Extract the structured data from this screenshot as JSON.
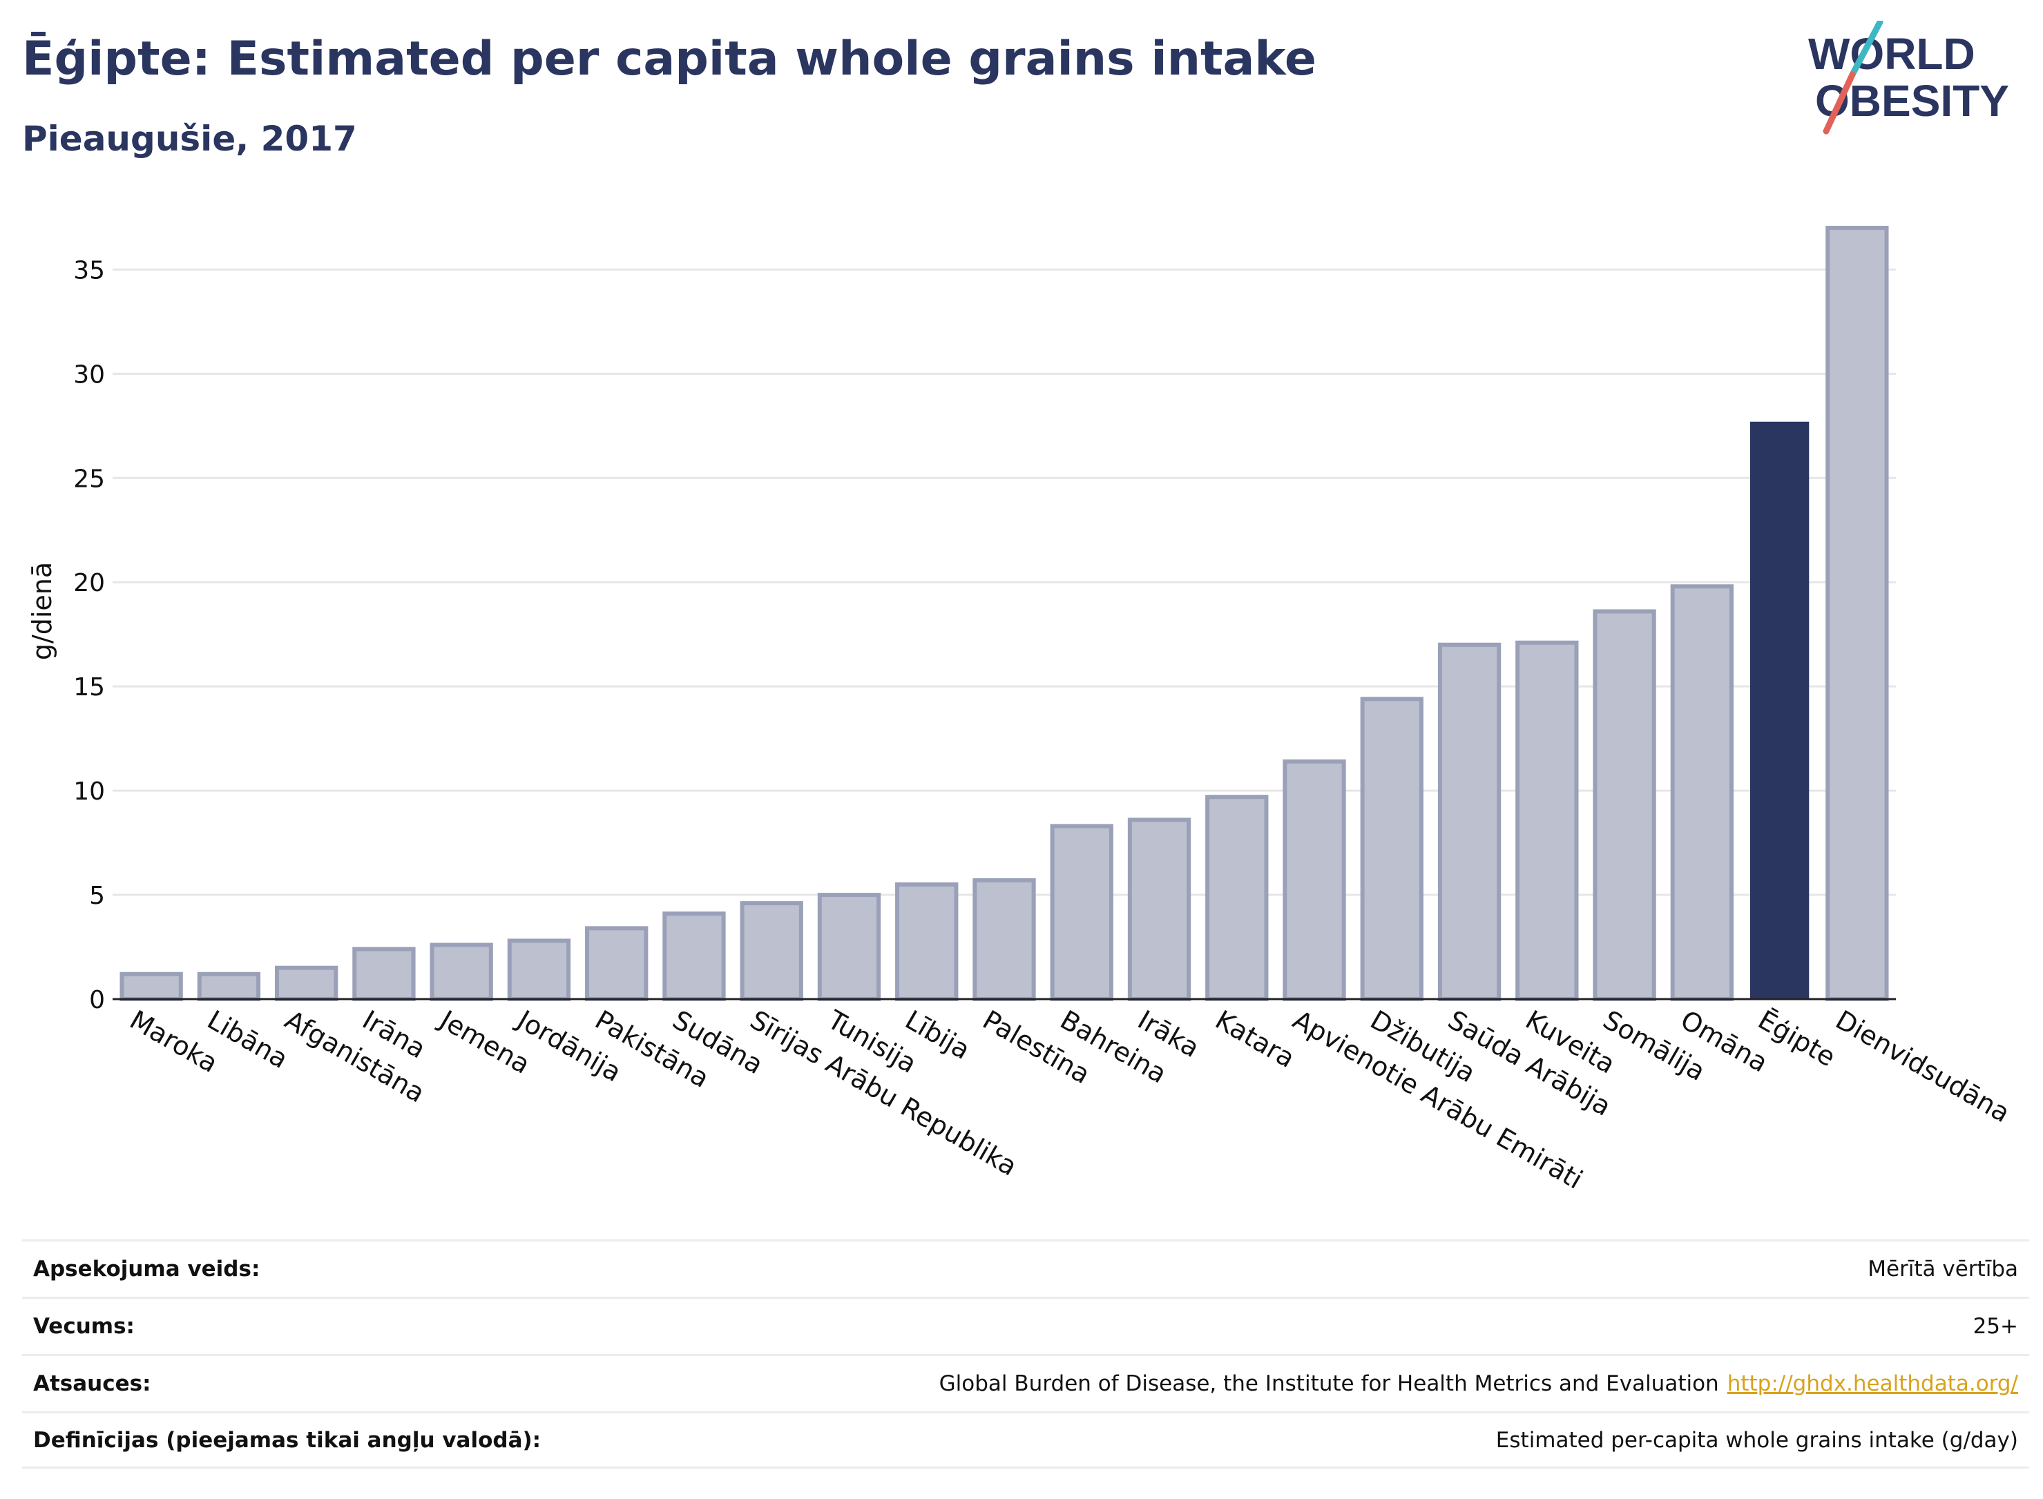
{
  "header": {
    "title": "Ēģipte: Estimated per capita whole grains intake",
    "subtitle": "Pieaugušie, 2017"
  },
  "logo": {
    "line1": "WORLD",
    "line2": "OBESITY",
    "icon": "world-obesity-logo"
  },
  "colors": {
    "title": "#2a3560",
    "highlight_bar": "#2a3560",
    "bar_fill": "#bcc0cf",
    "bar_stroke": "#9aa0b8",
    "link": "#d9a21b",
    "logo_teal": "#3bb8c4",
    "logo_red": "#e2625a"
  },
  "chart_data": {
    "type": "bar",
    "ylabel": "g/dienā",
    "xlabel": "",
    "ylim": [
      0,
      37
    ],
    "yticks": [
      0,
      5,
      10,
      15,
      20,
      25,
      30,
      35
    ],
    "grid": true,
    "highlight": "Ēģipte",
    "categories": [
      "Maroka",
      "Libāna",
      "Afganistāna",
      "Irāna",
      "Jemena",
      "Jordānija",
      "Pakistāna",
      "Sudāna",
      "Sīrijas Arābu Republika",
      "Tunisija",
      "Lībija",
      "Palestīna",
      "Bahreina",
      "Irāka",
      "Katara",
      "Apvienotie Arābu Emirāti",
      "Džibutija",
      "Saūda Arābija",
      "Kuveita",
      "Somālija",
      "Omāna",
      "Ēģipte",
      "Dienvidsudāna"
    ],
    "values": [
      1.2,
      1.2,
      1.5,
      2.4,
      2.6,
      2.8,
      3.4,
      4.1,
      4.6,
      5.0,
      5.5,
      5.7,
      8.3,
      8.6,
      9.7,
      11.4,
      14.4,
      17.0,
      17.1,
      18.6,
      19.8,
      27.7,
      37.0
    ]
  },
  "info": [
    {
      "label": "Apsekojuma veids:",
      "value": "Mērītā vērtība"
    },
    {
      "label": "Vecums:",
      "value": "25+"
    },
    {
      "label": "Atsauces:",
      "value": "Global Burden of Disease, the Institute for Health Metrics and Evaluation",
      "link": "http://ghdx.healthdata.org/"
    },
    {
      "label": "Definīcijas (pieejamas tikai angļu valodā):",
      "value": "Estimated per-capita whole grains intake (g/day)"
    }
  ]
}
